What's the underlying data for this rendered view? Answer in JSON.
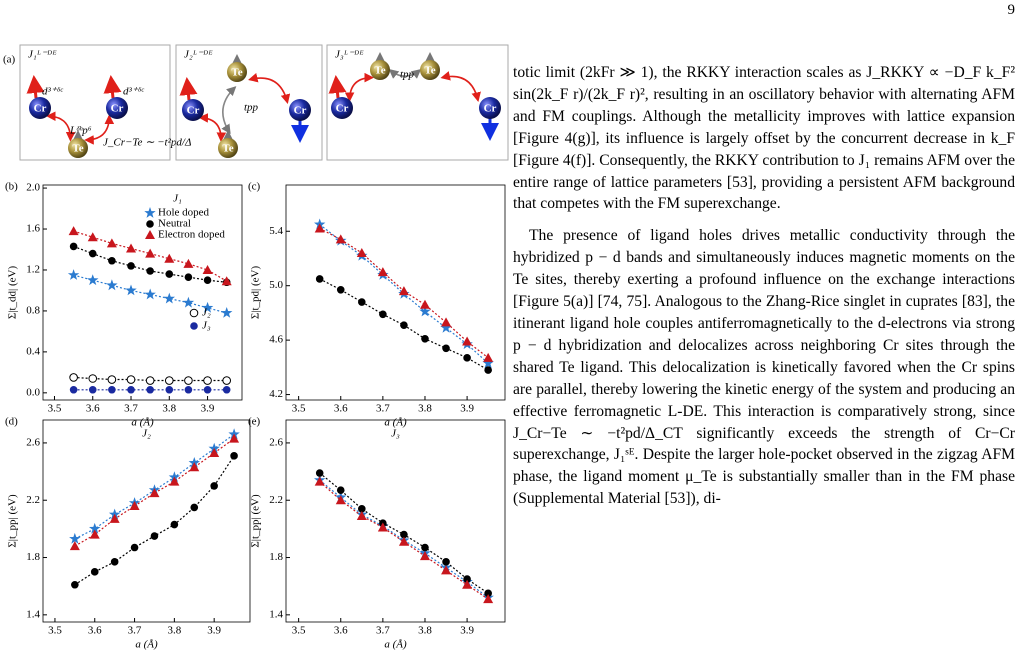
{
  "page_number": "9",
  "panel_a": {
    "label": "(a)",
    "boxes": [
      {
        "title": "J₁ᴸ⁻ᴰᴱ",
        "atoms": [
          "Cr",
          "Cr",
          "Te"
        ],
        "labels": [
          "d³⁺ᵟᶜ",
          "d³⁺ᵟᶜ",
          "Lᵟʰp⁶",
          "J_Cr−Te ∼ −t²pd/Δ"
        ]
      },
      {
        "title": "J₂ᴸ⁻ᴰᴱ",
        "atoms": [
          "Te",
          "Cr",
          "Cr",
          "Te"
        ],
        "labels": [
          "tpp"
        ]
      },
      {
        "title": "J₃ᴸ⁻ᴰᴱ",
        "atoms": [
          "Te",
          "Te",
          "Cr",
          "Cr"
        ],
        "labels": [
          "tpp"
        ]
      }
    ]
  },
  "chart_data": [
    {
      "type": "line",
      "panel": "(b)",
      "title": "J₁",
      "xlabel": "a (Å)",
      "ylabel": "Σ|t_dd| (eV)",
      "legend": "upper right",
      "x": [
        3.55,
        3.6,
        3.65,
        3.7,
        3.75,
        3.8,
        3.85,
        3.9,
        3.95
      ],
      "xlim": [
        3.47,
        3.99
      ],
      "ylim": [
        -0.07,
        2.03
      ],
      "xticks": [
        3.5,
        3.6,
        3.7,
        3.8,
        3.9
      ],
      "yticks": [
        {
          "value": 0,
          "label": "0.0"
        },
        0.4,
        0.8,
        1.2,
        1.6,
        {
          "value": 2,
          "label": "2.0"
        }
      ],
      "series": [
        {
          "name": "Hole doped",
          "color": "#2b7bd0",
          "marker": "star",
          "values": [
            1.15,
            1.1,
            1.05,
            1.0,
            0.96,
            0.92,
            0.88,
            0.83,
            0.78
          ]
        },
        {
          "name": "Neutral",
          "color": "#000000",
          "marker": "circle",
          "values": [
            1.43,
            1.36,
            1.29,
            1.24,
            1.19,
            1.16,
            1.13,
            1.1,
            1.08
          ]
        },
        {
          "name": "Electron doped",
          "color": "#c8161d",
          "marker": "triangle",
          "values": [
            1.58,
            1.52,
            1.46,
            1.41,
            1.36,
            1.31,
            1.26,
            1.2,
            1.09
          ]
        },
        {
          "name": "J₂",
          "color": "#000000",
          "marker": "open-circle",
          "values": [
            0.15,
            0.14,
            0.13,
            0.13,
            0.12,
            0.12,
            0.12,
            0.12,
            0.12
          ]
        },
        {
          "name": "J₃",
          "color": "#1a2aa0",
          "marker": "circle",
          "values": [
            0.03,
            0.03,
            0.03,
            0.03,
            0.03,
            0.03,
            0.03,
            0.03,
            0.03
          ]
        }
      ]
    },
    {
      "type": "line",
      "panel": "(c)",
      "xlabel": "a (Å)",
      "ylabel": "Σ|t_pd| (eV)",
      "x": [
        3.55,
        3.6,
        3.65,
        3.7,
        3.75,
        3.8,
        3.85,
        3.9,
        3.95
      ],
      "xlim": [
        3.47,
        3.99
      ],
      "ylim": [
        4.16,
        5.74
      ],
      "xticks": [
        3.5,
        3.6,
        3.7,
        3.8,
        3.9
      ],
      "yticks": [
        4.2,
        4.6,
        {
          "value": 5,
          "label": "5.0"
        },
        5.4
      ],
      "series": [
        {
          "color": "#2b7bd0",
          "marker": "star",
          "values": [
            5.45,
            5.33,
            5.22,
            5.08,
            4.94,
            4.81,
            4.69,
            4.57,
            4.43
          ]
        },
        {
          "color": "#000000",
          "marker": "circle",
          "values": [
            5.05,
            4.97,
            4.88,
            4.79,
            4.71,
            4.61,
            4.54,
            4.47,
            4.38
          ]
        },
        {
          "color": "#c8161d",
          "marker": "triangle",
          "values": [
            5.42,
            5.34,
            5.24,
            5.1,
            4.96,
            4.86,
            4.73,
            4.59,
            4.47
          ]
        }
      ]
    },
    {
      "type": "line",
      "panel": "(d)",
      "title": "J₂",
      "xlabel": "a (Å)",
      "ylabel": "Σ|t_pp| (eV)",
      "x": [
        3.55,
        3.6,
        3.65,
        3.7,
        3.75,
        3.8,
        3.85,
        3.9,
        3.95
      ],
      "xlim": [
        3.47,
        3.99
      ],
      "ylim": [
        1.35,
        2.76
      ],
      "xticks": [
        3.5,
        3.6,
        3.7,
        3.8,
        3.9
      ],
      "yticks": [
        1.4,
        1.8,
        2.2,
        2.6
      ],
      "series": [
        {
          "color": "#2b7bd0",
          "marker": "star",
          "values": [
            1.93,
            2.0,
            2.1,
            2.18,
            2.27,
            2.36,
            2.46,
            2.56,
            2.66
          ]
        },
        {
          "color": "#000000",
          "marker": "circle",
          "values": [
            1.61,
            1.7,
            1.77,
            1.87,
            1.95,
            2.03,
            2.15,
            2.3,
            2.51
          ]
        },
        {
          "color": "#c8161d",
          "marker": "triangle",
          "values": [
            1.88,
            1.96,
            2.07,
            2.16,
            2.25,
            2.33,
            2.43,
            2.53,
            2.63
          ]
        }
      ]
    },
    {
      "type": "line",
      "panel": "(e)",
      "title": "J₃",
      "xlabel": "a (Å)",
      "ylabel": "Σ|t_pp| (eV)",
      "x": [
        3.55,
        3.6,
        3.65,
        3.7,
        3.75,
        3.8,
        3.85,
        3.9,
        3.95
      ],
      "xlim": [
        3.47,
        3.99
      ],
      "ylim": [
        1.35,
        2.76
      ],
      "xticks": [
        3.5,
        3.6,
        3.7,
        3.8,
        3.9
      ],
      "yticks": [
        1.4,
        1.8,
        2.2,
        2.6
      ],
      "series": [
        {
          "color": "#2b7bd0",
          "marker": "star",
          "values": [
            2.34,
            2.22,
            2.1,
            2.02,
            1.92,
            1.83,
            1.73,
            1.63,
            1.52
          ]
        },
        {
          "color": "#000000",
          "marker": "circle",
          "values": [
            2.39,
            2.27,
            2.14,
            2.04,
            1.96,
            1.87,
            1.77,
            1.65,
            1.55
          ]
        },
        {
          "color": "#c8161d",
          "marker": "triangle",
          "values": [
            2.33,
            2.2,
            2.09,
            2.01,
            1.91,
            1.81,
            1.71,
            1.61,
            1.51
          ]
        }
      ]
    }
  ],
  "text": {
    "paragraphs": [
      "totic limit (2kFr ≫ 1), the RKKY interaction scales as J_RKKY ∝ −D_F k_F² sin(2k_F r)/(2k_F r)², resulting in an oscillatory behavior with alternating AFM and FM couplings. Although the metallicity improves with lattice expansion [Figure 4(g)], its influence is largely offset by the concurrent decrease in k_F [Figure 4(f)]. Consequently, the RKKY contribution to J₁ remains AFM over the entire range of lattice parameters [53], providing a persistent AFM background that competes with the FM superexchange.",
      "The presence of ligand holes drives metallic conductivity through the hybridized p − d bands and simultaneously induces magnetic moments on the Te sites, thereby exerting a profound influence on the exchange interactions [Figure 5(a)] [74, 75]. Analogous to the Zhang-Rice singlet in cuprates [83], the itinerant ligand hole couples antiferromagnetically to the d-electrons via strong p − d hybridization and delocalizes across neighboring Cr sites through the shared Te ligand. This delocalization is kinetically favored when the Cr spins are parallel, thereby lowering the kinetic energy of the system and producing an effective ferromagnetic L-DE. This interaction is comparatively strong, since J_Cr−Te ∼ −t²pd/Δ_CT significantly exceeds the strength of Cr−Cr superexchange, J₁ˢᴱ. Despite the larger hole-pocket observed in the zigzag AFM phase, the ligand moment μ_Te is substantially smaller than in the FM phase (Supplemental Material [53]), di-"
    ]
  }
}
